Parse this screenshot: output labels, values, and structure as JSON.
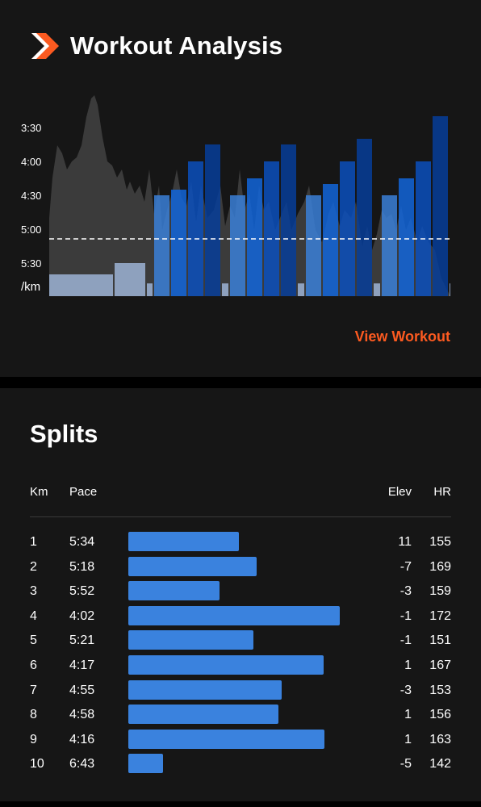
{
  "header": {
    "title": "Workout Analysis"
  },
  "chart": {
    "y_tick_labels": [
      "3:30",
      "4:00",
      "4:30",
      "5:00",
      "5:30",
      "/km"
    ],
    "view_link": "View Workout",
    "colors": {
      "light": "#9db4d6",
      "c1": "#3a82de",
      "c2": "#1168e0",
      "c3": "#0a50c2",
      "c4": "#053e9e",
      "elevation": "#3b3b3b",
      "threshold": "#ffffff"
    }
  },
  "chart_data": {
    "type": "bar",
    "ylabel": "/km",
    "threshold_pace": "5:00",
    "intervals": [
      {
        "kind": "rest",
        "pace": "5:40"
      },
      {
        "kind": "rest",
        "pace": "5:30"
      },
      {
        "kind": "rest",
        "pace": "5:48"
      },
      {
        "kind": "work",
        "pace": "4:30",
        "level": 1
      },
      {
        "kind": "work",
        "pace": "4:25",
        "level": 2
      },
      {
        "kind": "work",
        "pace": "4:00",
        "level": 3
      },
      {
        "kind": "work",
        "pace": "3:45",
        "level": 4
      },
      {
        "kind": "rest",
        "pace": "5:48"
      },
      {
        "kind": "work",
        "pace": "4:30",
        "level": 1
      },
      {
        "kind": "work",
        "pace": "4:15",
        "level": 2
      },
      {
        "kind": "work",
        "pace": "4:00",
        "level": 3
      },
      {
        "kind": "work",
        "pace": "3:45",
        "level": 4
      },
      {
        "kind": "rest",
        "pace": "5:48"
      },
      {
        "kind": "work",
        "pace": "4:30",
        "level": 1
      },
      {
        "kind": "work",
        "pace": "4:20",
        "level": 2
      },
      {
        "kind": "work",
        "pace": "4:00",
        "level": 3
      },
      {
        "kind": "work",
        "pace": "3:40",
        "level": 4
      },
      {
        "kind": "rest",
        "pace": "5:48"
      },
      {
        "kind": "work",
        "pace": "4:30",
        "level": 1
      },
      {
        "kind": "work",
        "pace": "4:15",
        "level": 2
      },
      {
        "kind": "work",
        "pace": "4:00",
        "level": 3
      },
      {
        "kind": "work",
        "pace": "3:20",
        "level": 4
      },
      {
        "kind": "rest",
        "pace": "5:48"
      },
      {
        "kind": "rest",
        "pace": "5:48"
      }
    ]
  },
  "splits": {
    "title": "Splits",
    "headers": {
      "km": "Km",
      "pace": "Pace",
      "elev": "Elev",
      "hr": "HR"
    },
    "rows": [
      {
        "km": "1",
        "pace": "5:34",
        "elev": "11",
        "hr": "155"
      },
      {
        "km": "2",
        "pace": "5:18",
        "elev": "-7",
        "hr": "169"
      },
      {
        "km": "3",
        "pace": "5:52",
        "elev": "-3",
        "hr": "159"
      },
      {
        "km": "4",
        "pace": "4:02",
        "elev": "-1",
        "hr": "172"
      },
      {
        "km": "5",
        "pace": "5:21",
        "elev": "-1",
        "hr": "151"
      },
      {
        "km": "6",
        "pace": "4:17",
        "elev": "1",
        "hr": "167"
      },
      {
        "km": "7",
        "pace": "4:55",
        "elev": "-3",
        "hr": "153"
      },
      {
        "km": "8",
        "pace": "4:58",
        "elev": "1",
        "hr": "156"
      },
      {
        "km": "9",
        "pace": "4:16",
        "elev": "1",
        "hr": "163"
      },
      {
        "km": "10",
        "pace": "6:43",
        "elev": "-5",
        "hr": "142"
      }
    ]
  }
}
